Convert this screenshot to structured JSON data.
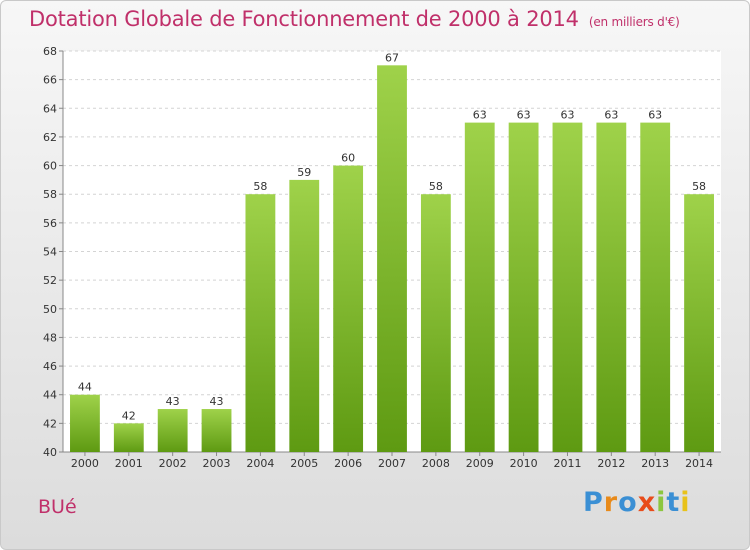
{
  "header": {
    "title": "Dotation Globale de Fonctionnement de 2000 à 2014",
    "unit": "(en milliers d'€)"
  },
  "footer": {
    "commune": "BUé",
    "logo_text": "Proxiti"
  },
  "colors": {
    "title": "#c0306a",
    "bar_light": "#9fd24a",
    "bar_dark": "#5e9a12",
    "logo_P": "#3a8fd4",
    "logo_r": "#e88a1a",
    "logo_o": "#3a8fd4",
    "logo_x": "#e84c1a",
    "logo_i": "#8cc63f",
    "logo_t": "#3a8fd4",
    "logo_i2": "#e8c21a"
  },
  "chart_data": {
    "type": "bar",
    "title": "Dotation Globale de Fonctionnement de 2000 à 2014",
    "subtitle": "(en milliers d'€)",
    "xlabel": "",
    "ylabel": "",
    "categories": [
      "2000",
      "2001",
      "2002",
      "2003",
      "2004",
      "2005",
      "2006",
      "2007",
      "2008",
      "2009",
      "2010",
      "2011",
      "2012",
      "2013",
      "2014"
    ],
    "values": [
      44,
      42,
      43,
      43,
      58,
      59,
      60,
      67,
      58,
      63,
      63,
      63,
      63,
      63,
      58
    ],
    "ylim": [
      40,
      68
    ],
    "yticks": [
      40,
      42,
      44,
      46,
      48,
      50,
      52,
      54,
      56,
      58,
      60,
      62,
      64,
      66,
      68
    ],
    "grid": true
  }
}
